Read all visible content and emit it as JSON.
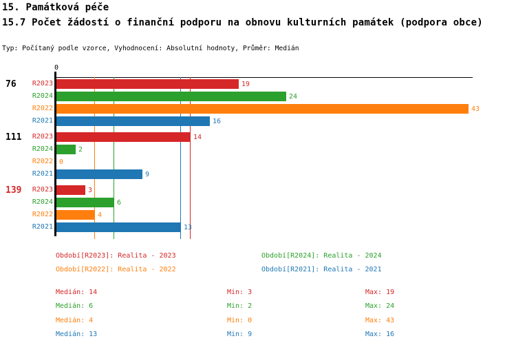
{
  "header": {
    "title": "15. Památková péče",
    "subtitle": "15.7 Počet žádostí o finanční podporu na obnovu kulturních památek (podpora obce)",
    "meta": "Typ: Počítaný podle vzorce, Vyhodnocení: Absolutní hodnoty, Průměr: Medián"
  },
  "chart_data": {
    "type": "bar",
    "orientation": "horizontal",
    "x_axis": {
      "tick_labels": [
        "0"
      ],
      "min": 0,
      "max_visible": 43,
      "grid": false
    },
    "series_order": [
      "R2023",
      "R2024",
      "R2022",
      "R2021"
    ],
    "series_colors": {
      "R2023": "#d62728",
      "R2024": "#2ca02c",
      "R2022": "#ff7f0e",
      "R2021": "#1f77b4"
    },
    "groups": [
      {
        "label": "76",
        "label_color": "#000000",
        "values": {
          "R2023": 19,
          "R2024": 24,
          "R2022": 43,
          "R2021": 16
        }
      },
      {
        "label": "111",
        "label_color": "#000000",
        "values": {
          "R2023": 14,
          "R2024": 2,
          "R2022": 0,
          "R2021": 9
        }
      },
      {
        "label": "139",
        "label_color": "#d62728",
        "values": {
          "R2023": 3,
          "R2024": 6,
          "R2022": 4,
          "R2021": 13
        }
      }
    ],
    "median_lines": [
      {
        "series": "R2023",
        "value": 14
      },
      {
        "series": "R2024",
        "value": 6
      },
      {
        "series": "R2022",
        "value": 4
      },
      {
        "series": "R2021",
        "value": 13
      }
    ],
    "legend": [
      {
        "series": "R2023",
        "label": "Období[R2023]: Realita - 2023"
      },
      {
        "series": "R2024",
        "label": "Období[R2024]: Realita - 2024"
      },
      {
        "series": "R2022",
        "label": "Období[R2022]: Realita - 2022"
      },
      {
        "series": "R2021",
        "label": "Období[R2021]: Realita - 2021"
      }
    ],
    "stats": [
      {
        "series": "R2023",
        "median_label": "Medián: 14",
        "min_label": "Min: 3",
        "max_label": "Max: 19"
      },
      {
        "series": "R2024",
        "median_label": "Medián: 6",
        "min_label": "Min: 2",
        "max_label": "Max: 24"
      },
      {
        "series": "R2022",
        "median_label": "Medián: 4",
        "min_label": "Min: 0",
        "max_label": "Max: 43"
      },
      {
        "series": "R2021",
        "median_label": "Medián: 13",
        "min_label": "Min: 9",
        "max_label": "Max: 16"
      }
    ]
  }
}
